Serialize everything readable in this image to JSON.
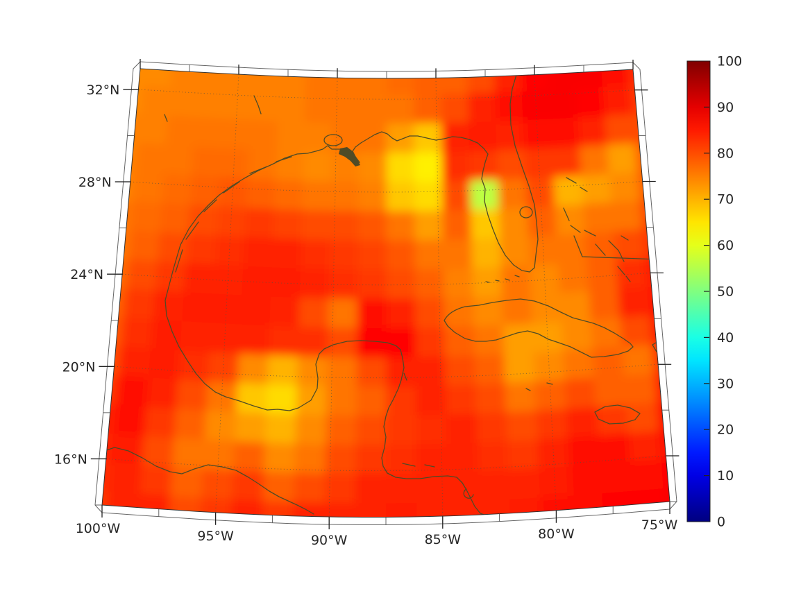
{
  "figure": {
    "background": "#ffffff",
    "description": "Geographic heatmap of the Gulf of Mexico and western Caribbean with colorbar"
  },
  "chart_data": {
    "type": "heatmap",
    "title": "",
    "xlabel": "",
    "ylabel": "",
    "x_axis": {
      "tick_labels": [
        "100°W",
        "95°W",
        "90°W",
        "85°W",
        "80°W",
        "75°W"
      ],
      "tick_lons": [
        100,
        95,
        90,
        85,
        80,
        75
      ]
    },
    "y_axis": {
      "tick_labels": [
        "32°N",
        "28°N",
        "24°N",
        "20°N",
        "16°N"
      ],
      "tick_lats": [
        32,
        28,
        24,
        20,
        16
      ]
    },
    "colorbar": {
      "min": 0,
      "max": 100,
      "tick_labels": [
        "0",
        "10",
        "20",
        "30",
        "40",
        "50",
        "60",
        "70",
        "80",
        "90",
        "100"
      ],
      "colormap": "jet",
      "position": "right"
    },
    "graticule": {
      "style": "dotted",
      "lat_lines": [
        32,
        28,
        24,
        20,
        16
      ],
      "lon_lines": [
        95,
        90,
        85,
        80
      ]
    },
    "coastline_color": "#4f4b26",
    "grid": {
      "lon_range": [
        -100,
        -75
      ],
      "lat_range": [
        14.0,
        32.9
      ],
      "cols": 20,
      "rows": 16,
      "values": [
        [
          74,
          74,
          75,
          75,
          75,
          75,
          75,
          76,
          76,
          76,
          77,
          78,
          78,
          80,
          84,
          87,
          88,
          88,
          86,
          83
        ],
        [
          74,
          75,
          75,
          75,
          75,
          75,
          75,
          76,
          76,
          76,
          76,
          78,
          80,
          84,
          86,
          88,
          88,
          87,
          85,
          82
        ],
        [
          75,
          75,
          76,
          76,
          76,
          76,
          75,
          75,
          76,
          76,
          72,
          68,
          84,
          85,
          84,
          86,
          86,
          84,
          80,
          80
        ],
        [
          75,
          76,
          76,
          77,
          77,
          76,
          75,
          74,
          75,
          74,
          66,
          64,
          83,
          82,
          80,
          82,
          82,
          76,
          72,
          78
        ],
        [
          75,
          76,
          77,
          78,
          79,
          78,
          77,
          76,
          76,
          75,
          68,
          66,
          80,
          56,
          76,
          80,
          70,
          72,
          74,
          78
        ],
        [
          76,
          77,
          78,
          80,
          81,
          82,
          81,
          80,
          80,
          79,
          76,
          72,
          78,
          68,
          74,
          78,
          74,
          76,
          76,
          80
        ],
        [
          76,
          78,
          80,
          82,
          83,
          84,
          84,
          83,
          82,
          81,
          79,
          76,
          76,
          70,
          74,
          76,
          76,
          78,
          80,
          82
        ],
        [
          77,
          80,
          82,
          84,
          84,
          85,
          85,
          84,
          83,
          82,
          80,
          78,
          75,
          72,
          76,
          74,
          76,
          78,
          83,
          85
        ],
        [
          78,
          82,
          84,
          85,
          85,
          85,
          84,
          80,
          76,
          86,
          84,
          80,
          76,
          74,
          76,
          74,
          74,
          78,
          84,
          85
        ],
        [
          79,
          83,
          85,
          84,
          84,
          84,
          83,
          83,
          80,
          87,
          87,
          82,
          78,
          76,
          72,
          72,
          74,
          76,
          80,
          84
        ],
        [
          80,
          84,
          85,
          83,
          81,
          74,
          70,
          74,
          76,
          80,
          84,
          84,
          80,
          78,
          72,
          74,
          76,
          78,
          76,
          82
        ],
        [
          82,
          86,
          84,
          80,
          76,
          68,
          66,
          72,
          76,
          78,
          82,
          84,
          82,
          80,
          76,
          78,
          80,
          78,
          78,
          84
        ],
        [
          84,
          86,
          82,
          78,
          74,
          72,
          70,
          74,
          78,
          80,
          82,
          83,
          84,
          82,
          80,
          82,
          84,
          82,
          80,
          86
        ],
        [
          84,
          85,
          80,
          76,
          76,
          78,
          74,
          76,
          80,
          82,
          83,
          84,
          84,
          83,
          82,
          84,
          86,
          86,
          84,
          86
        ],
        [
          83,
          84,
          82,
          78,
          80,
          82,
          78,
          80,
          82,
          84,
          84,
          84,
          84,
          84,
          84,
          85,
          86,
          86,
          86,
          87
        ],
        [
          82,
          84,
          84,
          80,
          82,
          84,
          82,
          84,
          84,
          84,
          85,
          84,
          84,
          84,
          85,
          86,
          86,
          87,
          87,
          88
        ]
      ]
    }
  }
}
